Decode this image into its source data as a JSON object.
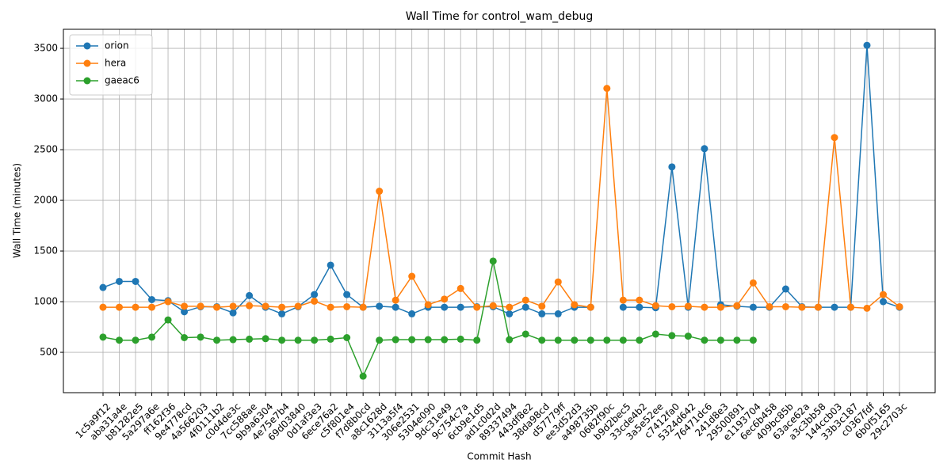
{
  "chart_data": {
    "type": "line",
    "title": "Wall Time for control_wam_debug",
    "xlabel": "Commit Hash",
    "ylabel": "Wall Time (minutes)",
    "categories": [
      "1c5a9f12",
      "aba31a4e",
      "b81282e5",
      "5a297a6e",
      "ff162f36",
      "9e4778cd",
      "4a566203",
      "4f0111b2",
      "c0d4de3c",
      "7cc588ae",
      "9b9a6304",
      "4e75e7b4",
      "69d03840",
      "0d1af3e3",
      "6ece76a2",
      "c5f801e4",
      "f7d8b0cd",
      "a8c1628d",
      "3113a5f4",
      "306e2531",
      "5304e090",
      "9dc31e49",
      "9c754c7a",
      "6cb9e1d5",
      "ad1c0d2d",
      "89337494",
      "443df8e2",
      "38da98cd",
      "d57779ff",
      "ee3d52d3",
      "a498735b",
      "0682f90c",
      "b9d2bec5",
      "33cde4b2",
      "3a5e52ee",
      "c7412fa0",
      "5324d642",
      "76471dc6",
      "241d8e3",
      "29500891",
      "e1193704",
      "6ec6b458",
      "409bc85b",
      "63ace62a",
      "a3c3bb58",
      "144ccb03",
      "33b3c187",
      "c0367fdf",
      "6b0f5165",
      "29c2703c"
    ],
    "series": [
      {
        "name": "orion",
        "color": "#1f77b4",
        "values": [
          1140,
          1200,
          1200,
          1020,
          1010,
          900,
          950,
          950,
          890,
          1060,
          945,
          880,
          950,
          1070,
          1360,
          1070,
          945,
          955,
          945,
          880,
          945,
          945,
          945,
          950,
          950,
          880,
          945,
          880,
          880,
          945,
          945,
          null,
          945,
          945,
          940,
          2330,
          945,
          2510,
          970,
          955,
          945,
          945,
          1125,
          950,
          945,
          945,
          945,
          3530,
          1000,
          945
        ]
      },
      {
        "name": "hera",
        "color": "#ff7f0e",
        "values": [
          945,
          945,
          945,
          945,
          1000,
          955,
          955,
          945,
          955,
          960,
          955,
          945,
          955,
          1005,
          945,
          950,
          945,
          2090,
          1015,
          1250,
          970,
          1025,
          1130,
          945,
          960,
          945,
          1015,
          955,
          1195,
          970,
          945,
          3105,
          1015,
          1015,
          960,
          950,
          955,
          945,
          945,
          960,
          1185,
          950,
          950,
          945,
          945,
          2620,
          945,
          935,
          1070,
          950
        ]
      },
      {
        "name": "gaeac6",
        "color": "#2ca02c",
        "values": [
          650,
          620,
          620,
          650,
          820,
          645,
          650,
          620,
          625,
          630,
          635,
          620,
          620,
          620,
          630,
          645,
          265,
          620,
          625,
          625,
          625,
          625,
          630,
          620,
          1400,
          625,
          680,
          620,
          620,
          620,
          620,
          620,
          620,
          620,
          680,
          665,
          660,
          620,
          620,
          620,
          620,
          null,
          null,
          null,
          null,
          null,
          null,
          null,
          null,
          null
        ]
      }
    ],
    "ylim": [
      102,
      3688
    ],
    "yticks": [
      500,
      1000,
      1500,
      2000,
      2500,
      3000,
      3500
    ],
    "grid": true,
    "legend": "upper left"
  }
}
